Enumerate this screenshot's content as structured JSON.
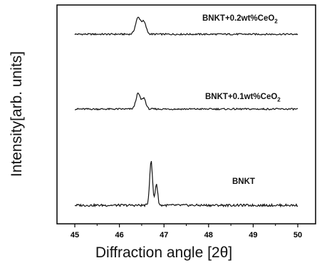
{
  "chart_data": {
    "type": "line",
    "xlabel": "Diffraction angle [2θ]",
    "ylabel": "Intensity[arb. units]",
    "xlim": [
      45,
      50
    ],
    "x_ticks": [
      "45",
      "46",
      "47",
      "48",
      "49",
      "50"
    ],
    "y_ticks": [],
    "series": [
      {
        "name": "BNKT+0.2wt%CeO2",
        "label_main": "BNKT+0.2wt%CeO",
        "label_sub": "2",
        "peak_x": 46.47,
        "peak_height": 1.0,
        "offset": 2.0,
        "peaks": [
          [
            46.42,
            0.08,
            0.85
          ],
          [
            46.55,
            0.07,
            0.6
          ]
        ]
      },
      {
        "name": "BNKT+0.1wt%CeO2",
        "label_main": "BNKT+0.1wt%CeO",
        "label_sub": "2",
        "peak_x": 46.47,
        "peak_height": 1.0,
        "offset": 1.0,
        "peaks": [
          [
            46.42,
            0.07,
            0.8
          ],
          [
            46.55,
            0.06,
            0.55
          ]
        ]
      },
      {
        "name": "BNKT",
        "label_main": "BNKT",
        "label_sub": "",
        "peak_x": 46.72,
        "peak_height": 1.0,
        "offset": 0.0,
        "peaks": [
          [
            46.71,
            0.045,
            1.55
          ],
          [
            46.83,
            0.04,
            0.75
          ]
        ]
      }
    ]
  }
}
